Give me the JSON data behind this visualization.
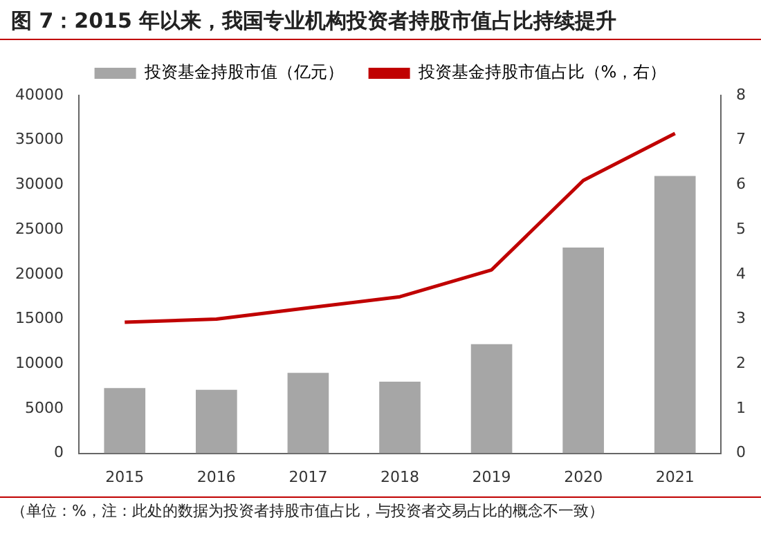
{
  "chart_data": {
    "type": "bar",
    "title": "图 7：2015 年以来，我国专业机构投资者持股市值占比持续提升",
    "categories": [
      "2015",
      "2016",
      "2017",
      "2018",
      "2019",
      "2020",
      "2021"
    ],
    "series": [
      {
        "name": "投资基金持股市值（亿元）",
        "color": "#a6a6a6",
        "values": [
          7300,
          7100,
          9000,
          8000,
          12200,
          23000,
          31000
        ]
      },
      {
        "name": "投资基金持股市值占比（%，右）",
        "type": "line",
        "axis": "y2",
        "color": "#c00000",
        "values": [
          2.93,
          3.0,
          3.25,
          3.5,
          4.1,
          6.1,
          7.15
        ]
      }
    ],
    "ylim": [
      0,
      40000
    ],
    "yticks": [
      0,
      5000,
      10000,
      15000,
      20000,
      25000,
      30000,
      35000,
      40000
    ],
    "y2lim": [
      0,
      8
    ],
    "y2ticks": [
      0,
      1,
      2,
      3,
      4,
      5,
      6,
      7,
      8
    ],
    "legend": "top",
    "grid": false,
    "marker": "none",
    "line_style": "solid",
    "annotations": [
      "（单位：%，注：此处的数据为投资者持股市值占比，与投资者交易占比的概念不一致）"
    ]
  }
}
